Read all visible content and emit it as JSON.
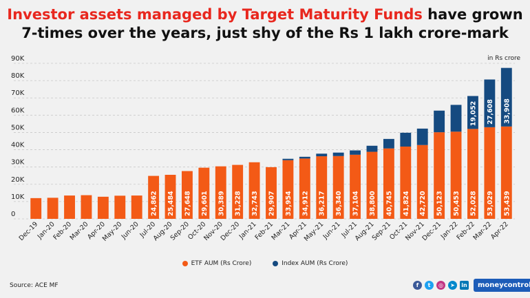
{
  "title": {
    "highlight": "Investor assets managed by Target Maturity Funds",
    "rest_line1": " have grown",
    "line2": "7-times over the years, just shy of the Rs 1 lakh crore-mark"
  },
  "unit_label": "in Rs crore",
  "source": "Source: ACE MF",
  "brand": "moneycontrol",
  "colors": {
    "etf": "#f35a16",
    "index": "#154a80",
    "highlight": "#e8271e"
  },
  "chart_data": {
    "type": "bar",
    "stacked": true,
    "categories": [
      "Dec-19",
      "Jan-20",
      "Feb-20",
      "Mar-20",
      "Apr-20",
      "May-20",
      "Jun-20",
      "Jul-20",
      "Aug-20",
      "Sep-20",
      "Oct-20",
      "Nov-20",
      "Dec-20",
      "Jan-21",
      "Feb-21",
      "Mar-21",
      "Apr-21",
      "May-21",
      "Jun-21",
      "Jul-21",
      "Aug-21",
      "Sep-21",
      "Oct-21",
      "Nov-21",
      "Dec-21",
      "Jan-22",
      "Feb-22",
      "Mar-22",
      "Apr-22"
    ],
    "series": [
      {
        "name": "ETF AUM (Rs Crore)",
        "values": [
          12000,
          12200,
          13500,
          13700,
          12800,
          13400,
          13500,
          24862,
          25484,
          27648,
          29601,
          30389,
          31228,
          32743,
          29907,
          33954,
          34912,
          36217,
          36340,
          37104,
          38800,
          40745,
          41824,
          42720,
          50123,
          50453,
          52028,
          53029,
          53439
        ]
      },
      {
        "name": "Index AUM (Rs Crore)",
        "values": [
          0,
          0,
          0,
          0,
          0,
          0,
          0,
          0,
          0,
          0,
          0,
          0,
          0,
          0,
          0,
          800,
          1000,
          1500,
          2000,
          2500,
          3500,
          5500,
          8000,
          9500,
          12500,
          15500,
          19052,
          27608,
          33908
        ]
      }
    ],
    "etf_labels": [
      "",
      "",
      "",
      "",
      "",
      "",
      "",
      "24,862",
      "25,484",
      "27,648",
      "29,601",
      "30,389",
      "31,228",
      "32,743",
      "29,907",
      "33,954",
      "34,912",
      "36,217",
      "36,340",
      "37,104",
      "38,800",
      "40,745",
      "41,824",
      "42,720",
      "50,123",
      "50,453",
      "52,028",
      "53,029",
      "53,439"
    ],
    "index_labels": [
      "",
      "",
      "",
      "",
      "",
      "",
      "",
      "",
      "",
      "",
      "",
      "",
      "",
      "",
      "",
      "",
      "",
      "",
      "",
      "",
      "",
      "",
      "",
      "",
      "",
      "",
      "19,052",
      "27,608",
      "33,908"
    ],
    "yticks": [
      "0",
      "10K",
      "20K",
      "30K",
      "40K",
      "50K",
      "60K",
      "70K",
      "80K",
      "90K"
    ],
    "ylim": [
      0,
      90000
    ],
    "legend": "bottom"
  }
}
